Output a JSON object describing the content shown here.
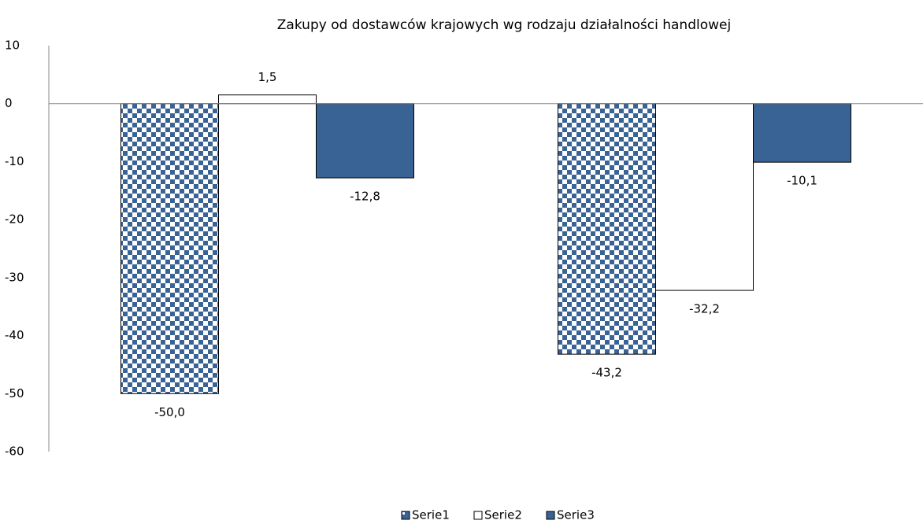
{
  "chart_data": {
    "type": "bar",
    "title": "Zakupy od dostawców krajowych wg rodzaju działalności handlowej",
    "categories": [
      null,
      null
    ],
    "series": [
      {
        "name": "Serie1",
        "color": "#3a6395",
        "pattern": "checker",
        "values": [
          -50.0,
          -43.2
        ],
        "value_labels": [
          "-50,0",
          "-43,2"
        ]
      },
      {
        "name": "Serie2",
        "color": "#ffffff",
        "values": [
          1.5,
          -32.2
        ],
        "value_labels": [
          "1,5",
          "-32,2"
        ]
      },
      {
        "name": "Serie3",
        "color": "#3a6395",
        "values": [
          -12.8,
          -10.1
        ],
        "value_labels": [
          "-12,8",
          "-10,1"
        ]
      }
    ],
    "ylim": [
      -60,
      10
    ],
    "yticks": [
      10,
      0,
      -10,
      -20,
      -30,
      -40,
      -50,
      -60
    ],
    "grid": false,
    "legend": "bottom"
  }
}
